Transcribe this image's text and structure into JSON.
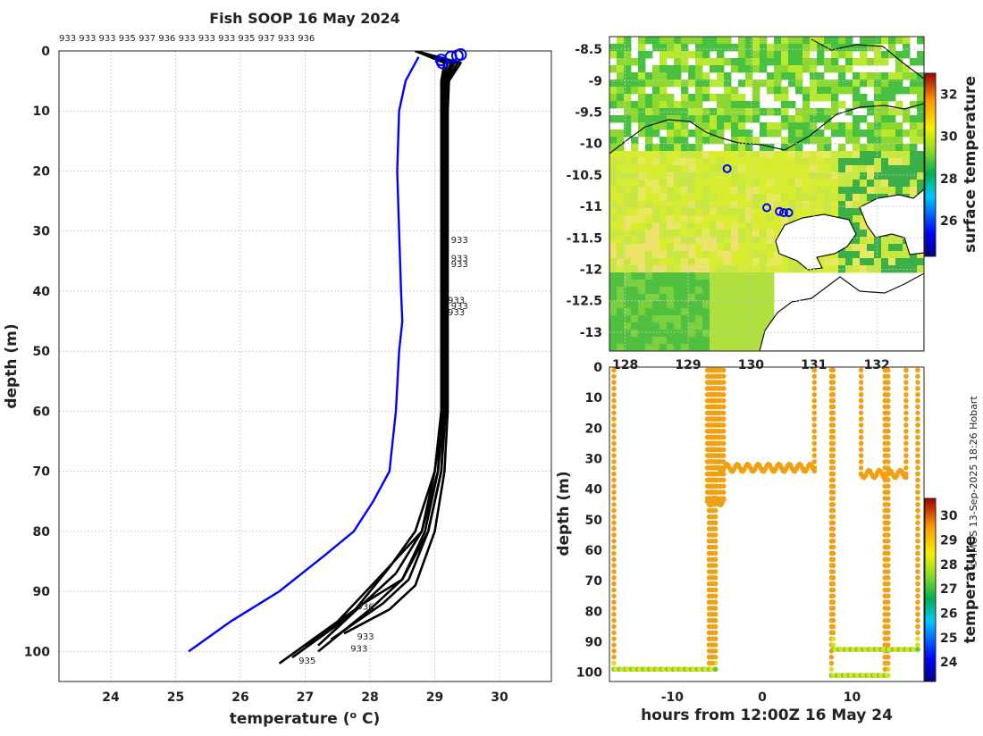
{
  "chart_data": [
    {
      "id": "profile",
      "type": "line",
      "title": "Fish SOOP 16 May 2024",
      "header_ids": "933 933 933 935 937 936 933 933 933 935 937 933 936",
      "xlabel": "temperature (",
      "xlabel_sup": "o",
      "xlabel_unit": " C)",
      "ylabel": "depth (m)",
      "xlim": [
        23.2,
        30.8
      ],
      "ylim": [
        0,
        105
      ],
      "xticks": [
        24,
        25,
        26,
        27,
        28,
        29,
        30
      ],
      "yticks": [
        0,
        10,
        20,
        30,
        40,
        50,
        60,
        70,
        80,
        90,
        100
      ],
      "climatology": {
        "name": "climatology",
        "color": "#0000ff",
        "temperature": [
          28.75,
          28.55,
          28.45,
          28.42,
          28.45,
          28.48,
          28.5,
          28.45,
          28.4,
          28.3,
          28.05,
          27.75,
          27.3,
          26.6,
          25.85,
          25.2
        ],
        "depth": [
          1,
          5,
          10,
          20,
          30,
          40,
          45,
          50,
          60,
          70,
          75,
          80,
          84,
          90,
          95,
          100
        ]
      },
      "profiles": [
        {
          "temperature": [
            29.2,
            29.12,
            29.1,
            29.1,
            29.1,
            29.1,
            29.1,
            29.1,
            29.0,
            28.8,
            28.4,
            27.9,
            27.0
          ],
          "depth": [
            2,
            5,
            10,
            20,
            30,
            40,
            50,
            60,
            70,
            80,
            87,
            92,
            99
          ]
        },
        {
          "temperature": [
            29.3,
            29.18,
            29.15,
            29.15,
            29.15,
            29.15,
            29.15,
            29.15,
            29.1,
            28.9,
            28.5,
            28.0,
            27.2
          ],
          "depth": [
            2,
            5,
            10,
            20,
            30,
            40,
            50,
            60,
            70,
            80,
            88,
            93,
            100
          ]
        },
        {
          "temperature": [
            29.25,
            29.14,
            29.12,
            29.12,
            29.12,
            29.12,
            29.12,
            29.12,
            29.0,
            28.7,
            28.3,
            27.7,
            26.8
          ],
          "depth": [
            2,
            5,
            10,
            20,
            30,
            40,
            50,
            60,
            70,
            80,
            86,
            94,
            101
          ]
        },
        {
          "temperature": [
            29.35,
            29.2,
            29.18,
            29.17,
            29.17,
            29.17,
            29.17,
            29.17,
            29.1,
            28.9,
            28.6,
            28.2,
            27.4
          ],
          "depth": [
            2,
            5,
            10,
            20,
            30,
            40,
            50,
            60,
            70,
            80,
            88,
            92,
            98
          ]
        },
        {
          "temperature": [
            29.4,
            29.22,
            29.2,
            29.2,
            29.2,
            29.2,
            29.2,
            29.2,
            29.15,
            29.0,
            28.7,
            28.3,
            27.6
          ],
          "depth": [
            2,
            5,
            10,
            20,
            30,
            40,
            50,
            60,
            70,
            80,
            89,
            93,
            97
          ]
        },
        {
          "temperature": [
            29.15,
            29.1,
            29.1,
            29.1,
            29.1,
            29.1,
            29.1,
            29.1,
            29.05,
            28.8,
            28.2,
            27.5,
            26.6
          ],
          "depth": [
            2,
            5,
            10,
            20,
            30,
            40,
            50,
            60,
            70,
            80,
            87,
            95,
            102
          ]
        },
        {
          "temperature": [
            29.28,
            29.16,
            29.14,
            29.14,
            29.14,
            29.14,
            29.14,
            29.14,
            29.05,
            28.85,
            28.5,
            27.9,
            27.2
          ],
          "depth": [
            2,
            5,
            10,
            20,
            30,
            40,
            50,
            60,
            70,
            80,
            88,
            92,
            99
          ]
        }
      ],
      "markers": [
        {
          "temperature": 29.1,
          "depth": 1.5
        },
        {
          "temperature": 29.12,
          "depth": 2
        },
        {
          "temperature": 29.25,
          "depth": 1
        },
        {
          "temperature": 29.35,
          "depth": 0.8
        },
        {
          "temperature": 29.4,
          "depth": 0.6
        }
      ],
      "depth_labels": [
        {
          "text": "933",
          "temperature": 29.25,
          "depth": 32
        },
        {
          "text": "933",
          "temperature": 29.25,
          "depth": 35
        },
        {
          "text": "933",
          "temperature": 29.25,
          "depth": 36
        },
        {
          "text": "933",
          "temperature": 29.2,
          "depth": 42
        },
        {
          "text": "933",
          "temperature": 29.25,
          "depth": 43
        },
        {
          "text": "933",
          "temperature": 29.2,
          "depth": 44
        },
        {
          "text": "936",
          "temperature": 27.8,
          "depth": 93
        },
        {
          "text": "933",
          "temperature": 27.8,
          "depth": 98
        },
        {
          "text": "933",
          "temperature": 27.7,
          "depth": 100
        },
        {
          "text": "935",
          "temperature": 26.9,
          "depth": 102
        }
      ]
    },
    {
      "id": "map",
      "type": "heatmap",
      "x_ticks": [
        128,
        129,
        130,
        131,
        132
      ],
      "x_tick_labels": [
        "128",
        "129",
        "130",
        "131",
        "132"
      ],
      "y_ticks": [
        -8.5,
        -9,
        -9.5,
        -10,
        -10.5,
        -11,
        -11.5,
        -12,
        -12.5,
        -13
      ],
      "y_tick_labels": [
        "-8.5",
        "-9",
        "-9.5",
        "-10",
        "-10.5",
        "-11",
        "-11.5",
        "-12",
        "-12.5",
        "-13"
      ],
      "xlim": [
        127.75,
        132.75
      ],
      "ylim": [
        -13.3,
        -8.3
      ],
      "colorbar": {
        "label": "surface temperature",
        "range": [
          24.3,
          33
        ],
        "ticks": [
          "26",
          "28",
          "30",
          "32"
        ]
      },
      "positions": [
        {
          "lon": 129.62,
          "lat": -10.4
        },
        {
          "lon": 130.25,
          "lat": -11.02
        },
        {
          "lon": 130.45,
          "lat": -11.08
        },
        {
          "lon": 130.52,
          "lat": -11.1
        },
        {
          "lon": 130.6,
          "lat": -11.1
        }
      ]
    },
    {
      "id": "timeseries",
      "type": "scatter",
      "xlabel": "hours from 12:00Z 16 May 24",
      "ylabel": "depth (m)",
      "xlim": [
        -17,
        18
      ],
      "ylim": [
        0,
        103
      ],
      "xticks": [
        -10,
        0,
        10
      ],
      "xtick_labels": [
        "-10",
        "0",
        "10"
      ],
      "yticks": [
        0,
        10,
        20,
        30,
        40,
        50,
        60,
        70,
        80,
        90,
        100
      ],
      "colorbar": {
        "label": "temperature",
        "range": [
          23.2,
          30.7
        ],
        "ticks": [
          "24",
          "25",
          "26",
          "27",
          "28",
          "29",
          "30"
        ]
      },
      "casts": [
        {
          "t0": -16.5,
          "t1": -5.2,
          "bottom": 99,
          "loop": 2
        },
        {
          "t0": -6.1,
          "t1": -4.3,
          "bottom": 44,
          "loop": 4
        },
        {
          "t0": -4.8,
          "t1": 5.8,
          "bottom": 33,
          "loop": 0
        },
        {
          "t0": 7.7,
          "t1": 14,
          "bottom": 101,
          "loop": 1
        },
        {
          "t0": 7.9,
          "t1": 17.3,
          "bottom": 92.5,
          "loop": 0
        },
        {
          "t0": 11,
          "t1": 16,
          "bottom": 35,
          "loop": 0
        }
      ],
      "surface_temp": 29.15
    }
  ],
  "credit": "© IMOS 13-Sep-2025 18:26 Hobart"
}
